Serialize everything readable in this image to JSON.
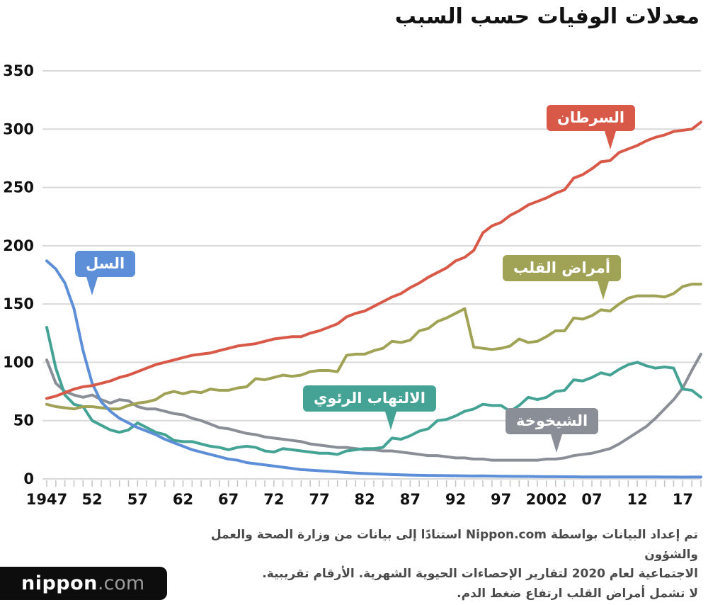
{
  "title": "معدلات الوفيات حسب السبب",
  "chart_data": {
    "type": "line",
    "x_start": 1947,
    "x_end": 2019,
    "ylim": [
      0,
      350
    ],
    "y_ticks": [
      0,
      50,
      100,
      150,
      200,
      250,
      300,
      350
    ],
    "x_tick_labels": [
      {
        "year": 1947,
        "label": "1947"
      },
      {
        "year": 1952,
        "label": "52"
      },
      {
        "year": 1957,
        "label": "57"
      },
      {
        "year": 1962,
        "label": "62"
      },
      {
        "year": 1967,
        "label": "67"
      },
      {
        "year": 1972,
        "label": "72"
      },
      {
        "year": 1977,
        "label": "77"
      },
      {
        "year": 1982,
        "label": "82"
      },
      {
        "year": 1987,
        "label": "87"
      },
      {
        "year": 1992,
        "label": "92"
      },
      {
        "year": 1997,
        "label": "97"
      },
      {
        "year": 2002,
        "label": "2002"
      },
      {
        "year": 2007,
        "label": "07"
      },
      {
        "year": 2012,
        "label": "12"
      },
      {
        "year": 2017,
        "label": "17"
      }
    ],
    "grid": true,
    "legend": "inline-callouts",
    "series": [
      {
        "name": "الشيخوخة",
        "color": "#8a8e97",
        "values": [
          102,
          82,
          75,
          72,
          70,
          72,
          68,
          65,
          68,
          67,
          62,
          60,
          60,
          58,
          56,
          55,
          52,
          50,
          47,
          44,
          43,
          41,
          39,
          38,
          36,
          35,
          34,
          33,
          32,
          30,
          29,
          28,
          27,
          27,
          26,
          25,
          25,
          24,
          24,
          23,
          22,
          21,
          20,
          20,
          19,
          18,
          18,
          17,
          17,
          16,
          16,
          16,
          16,
          16,
          16,
          17,
          17,
          18,
          20,
          21,
          22,
          24,
          26,
          30,
          35,
          40,
          45,
          52,
          60,
          68,
          78,
          93,
          107
        ]
      },
      {
        "name": "الالتهاب الرئوي",
        "color": "#45a396",
        "values": [
          130,
          95,
          72,
          64,
          62,
          50,
          46,
          42,
          40,
          42,
          48,
          44,
          40,
          38,
          33,
          32,
          32,
          30,
          28,
          27,
          25,
          27,
          28,
          27,
          24,
          23,
          26,
          25,
          24,
          23,
          22,
          22,
          21,
          24,
          25,
          26,
          26,
          27,
          35,
          34,
          37,
          41,
          43,
          50,
          51,
          54,
          58,
          60,
          64,
          63,
          63,
          58,
          63,
          70,
          68,
          70,
          75,
          76,
          85,
          84,
          87,
          91,
          89,
          94,
          98,
          100,
          97,
          95,
          96,
          95,
          77,
          76,
          70
        ]
      },
      {
        "name": "أمراض القلب",
        "color": "#a0a256",
        "values": [
          64,
          62,
          61,
          60,
          62,
          62,
          61,
          60,
          60,
          63,
          65,
          66,
          68,
          73,
          75,
          73,
          75,
          74,
          77,
          76,
          76,
          78,
          79,
          86,
          85,
          87,
          89,
          88,
          89,
          92,
          93,
          93,
          92,
          106,
          107,
          107,
          110,
          112,
          118,
          117,
          119,
          127,
          129,
          135,
          138,
          142,
          146,
          113,
          112,
          111,
          112,
          114,
          120,
          117,
          118,
          122,
          127,
          127,
          138,
          137,
          140,
          145,
          144,
          150,
          155,
          157,
          157,
          157,
          156,
          159,
          165,
          167,
          167
        ]
      },
      {
        "name": "السل",
        "color": "#5d8ed8",
        "values": [
          187,
          180,
          168,
          146,
          110,
          82,
          66,
          58,
          52,
          48,
          44,
          41,
          38,
          34,
          31,
          28,
          25,
          23,
          21,
          19,
          17,
          16,
          14,
          13,
          12,
          11,
          10,
          9,
          8,
          7.5,
          7,
          6.5,
          6,
          5.5,
          5,
          4.6,
          4.3,
          4,
          3.7,
          3.5,
          3.3,
          3.1,
          3,
          2.9,
          2.8,
          2.7,
          2.6,
          2.5,
          2.6,
          2.4,
          2.3,
          2.2,
          2.1,
          2.1,
          2,
          1.9,
          1.9,
          1.8,
          1.8,
          1.7,
          1.7,
          1.7,
          1.7,
          1.7,
          1.7,
          1.7,
          1.7,
          1.7,
          1.6,
          1.6,
          1.5,
          1.6,
          1.6
        ]
      },
      {
        "name": "السرطان",
        "color": "#d85948",
        "values": [
          69,
          71,
          74,
          77,
          79,
          80,
          82,
          84,
          87,
          89,
          92,
          95,
          98,
          100,
          102,
          104,
          106,
          107,
          108,
          110,
          112,
          114,
          115,
          116,
          118,
          120,
          121,
          122,
          122,
          125,
          127,
          130,
          133,
          139,
          142,
          144,
          148,
          152,
          156,
          159,
          164,
          168,
          173,
          177,
          181,
          187,
          190,
          196,
          211,
          217,
          220,
          226,
          230,
          235,
          238,
          241,
          245,
          248,
          258,
          261,
          266,
          272,
          273,
          280,
          283,
          286,
          290,
          293,
          295,
          298,
          299,
          300,
          306
        ]
      }
    ]
  },
  "annotations": [
    {
      "label": "السرطان",
      "series": 4
    },
    {
      "label": "أمراض القلب",
      "series": 2
    },
    {
      "label": "السل",
      "series": 3
    },
    {
      "label": "الالتهاب الرئوي",
      "series": 1
    },
    {
      "label": "الشيخوخة",
      "series": 0
    }
  ],
  "footer": {
    "lines": [
      "تم إعداد البيانات بواسطة Nippon.com استنادًا إلى بيانات من وزارة الصحة والعمل والشؤون",
      "الاجتماعية لعام 2020 لتقارير الإحصاءات الحيوية الشهرية. الأرقام تقريبية.",
      "لا تشمل أمراض القلب ارتفاع ضغط الدم."
    ]
  },
  "logo": {
    "name": "nippon",
    "tld": ".com"
  }
}
